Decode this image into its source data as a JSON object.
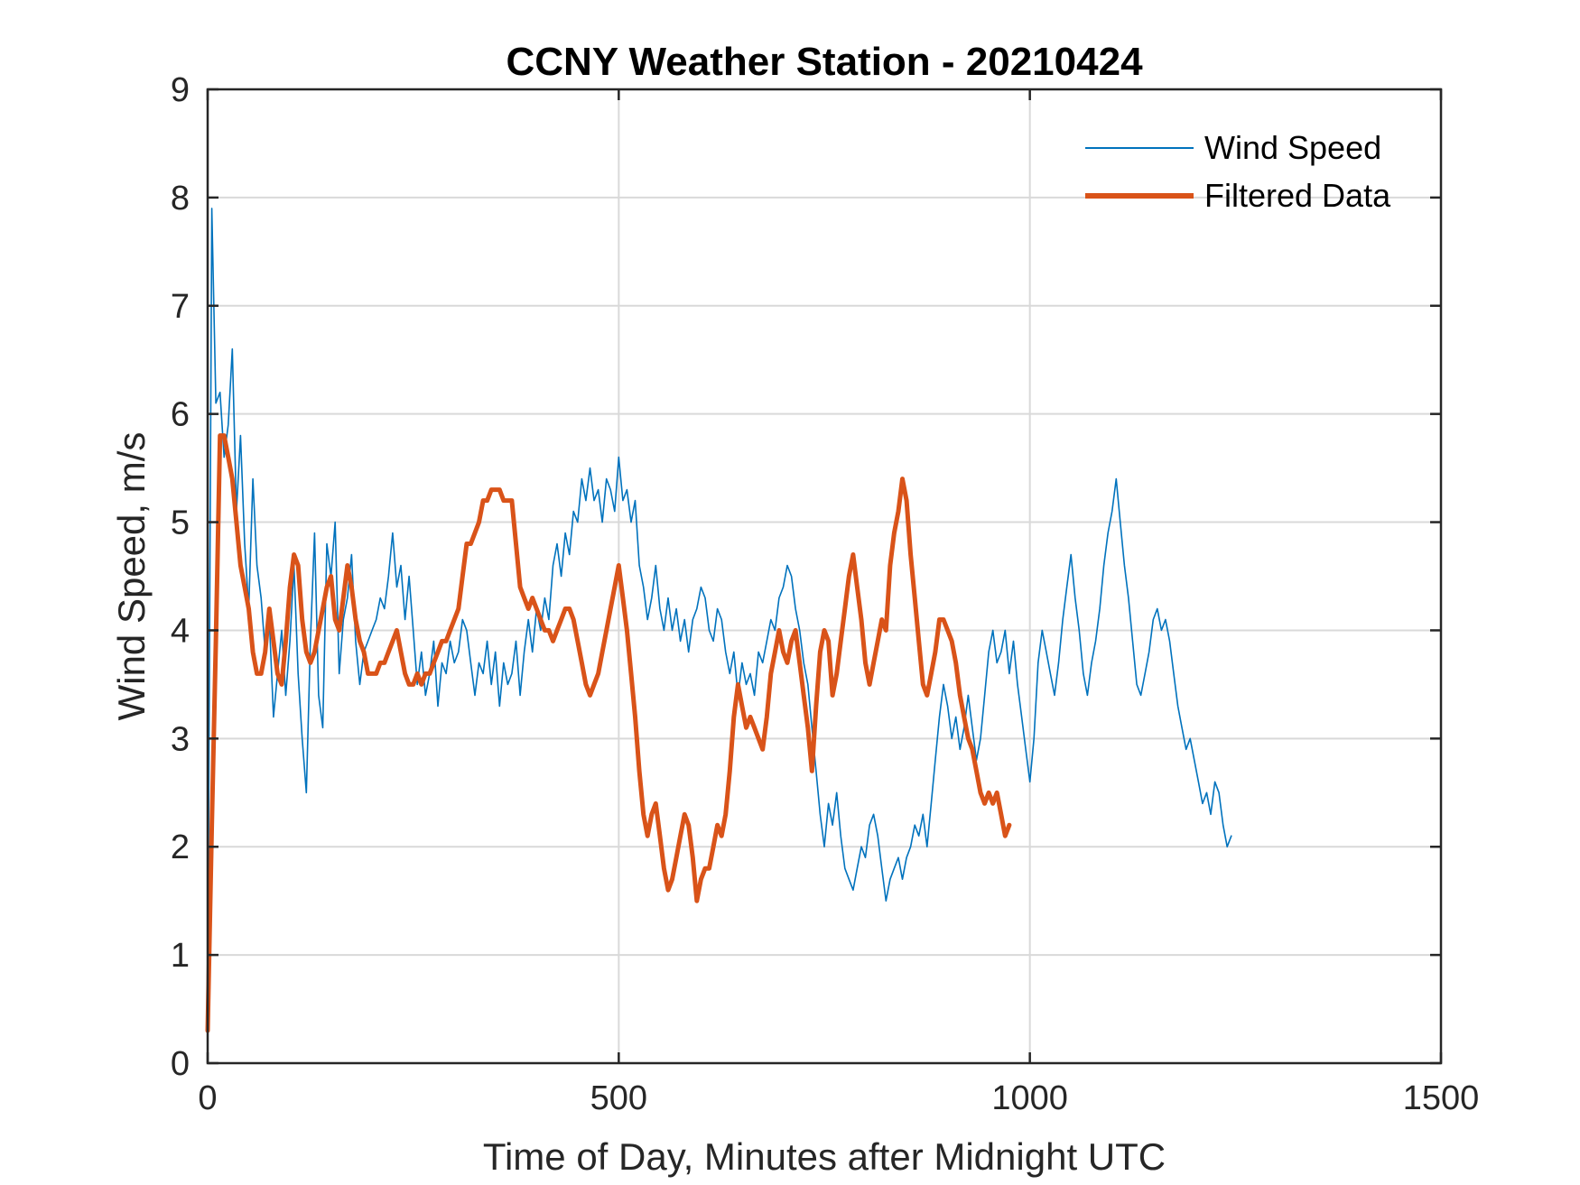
{
  "chart_data": {
    "type": "line",
    "title": "CCNY Weather Station - 20210424",
    "xlabel": "Time of Day, Minutes after Midnight UTC",
    "ylabel": "Wind Speed, m/s",
    "xlim": [
      0,
      1500
    ],
    "ylim": [
      0,
      9
    ],
    "x_ticks": [
      0,
      500,
      1000,
      1500
    ],
    "y_ticks": [
      0,
      1,
      2,
      3,
      4,
      5,
      6,
      7,
      8,
      9
    ],
    "x_tick_labels": [
      "0",
      "500",
      "1000",
      "1500"
    ],
    "y_tick_labels": [
      "0",
      "1",
      "2",
      "3",
      "4",
      "5",
      "6",
      "7",
      "8",
      "9"
    ],
    "grid": true,
    "legend_position": "top-right",
    "series": [
      {
        "name": "Wind Speed",
        "color": "#0072BD",
        "style": "thin",
        "x_start": 0,
        "x_step": 5,
        "values": [
          0.5,
          7.9,
          6.1,
          6.2,
          5.6,
          5.9,
          6.6,
          5.1,
          5.8,
          4.8,
          4.2,
          5.4,
          4.6,
          4.3,
          3.8,
          4.1,
          3.2,
          3.6,
          4.0,
          3.4,
          3.9,
          4.6,
          3.6,
          3.0,
          2.5,
          3.9,
          4.9,
          3.4,
          3.1,
          4.8,
          4.5,
          5.0,
          3.6,
          4.1,
          4.3,
          4.7,
          3.9,
          3.5,
          3.8,
          3.9,
          4.0,
          4.1,
          4.3,
          4.2,
          4.5,
          4.9,
          4.4,
          4.6,
          4.1,
          4.5,
          4.0,
          3.5,
          3.8,
          3.4,
          3.6,
          3.9,
          3.3,
          3.7,
          3.6,
          3.9,
          3.7,
          3.8,
          4.1,
          4.0,
          3.7,
          3.4,
          3.7,
          3.6,
          3.9,
          3.5,
          3.8,
          3.3,
          3.7,
          3.5,
          3.6,
          3.9,
          3.4,
          3.8,
          4.1,
          3.8,
          4.2,
          4.0,
          4.3,
          4.1,
          4.6,
          4.8,
          4.5,
          4.9,
          4.7,
          5.1,
          5.0,
          5.4,
          5.2,
          5.5,
          5.2,
          5.3,
          5.0,
          5.4,
          5.3,
          5.1,
          5.6,
          5.2,
          5.3,
          5.0,
          5.2,
          4.6,
          4.4,
          4.1,
          4.3,
          4.6,
          4.2,
          4.0,
          4.3,
          4.0,
          4.2,
          3.9,
          4.1,
          3.8,
          4.1,
          4.2,
          4.4,
          4.3,
          4.0,
          3.9,
          4.2,
          4.1,
          3.8,
          3.6,
          3.8,
          3.4,
          3.7,
          3.5,
          3.6,
          3.4,
          3.8,
          3.7,
          3.9,
          4.1,
          4.0,
          4.3,
          4.4,
          4.6,
          4.5,
          4.2,
          4.0,
          3.7,
          3.5,
          3.1,
          2.7,
          2.3,
          2.0,
          2.4,
          2.2,
          2.5,
          2.1,
          1.8,
          1.7,
          1.6,
          1.8,
          2.0,
          1.9,
          2.2,
          2.3,
          2.1,
          1.8,
          1.5,
          1.7,
          1.8,
          1.9,
          1.7,
          1.9,
          2.0,
          2.2,
          2.1,
          2.3,
          2.0,
          2.4,
          2.8,
          3.2,
          3.5,
          3.3,
          3.0,
          3.2,
          2.9,
          3.1,
          3.4,
          3.1,
          2.8,
          3.0,
          3.4,
          3.8,
          4.0,
          3.7,
          3.8,
          4.0,
          3.6,
          3.9,
          3.5,
          3.2,
          2.9,
          2.6,
          3.0,
          3.7,
          4.0,
          3.8,
          3.6,
          3.4,
          3.7,
          4.1,
          4.4,
          4.7,
          4.3,
          4.0,
          3.6,
          3.4,
          3.7,
          3.9,
          4.2,
          4.6,
          4.9,
          5.1,
          5.4,
          5.0,
          4.6,
          4.3,
          3.9,
          3.5,
          3.4,
          3.6,
          3.8,
          4.1,
          4.2,
          4.0,
          4.1,
          3.9,
          3.6,
          3.3,
          3.1,
          2.9,
          3.0,
          2.8,
          2.6,
          2.4,
          2.5,
          2.3,
          2.6,
          2.5,
          2.2,
          2.0,
          2.1
        ]
      },
      {
        "name": "Filtered Data",
        "color": "#D95319",
        "style": "thick",
        "x_start": 0,
        "x_step": 5,
        "values": [
          0.3,
          2.2,
          3.9,
          5.8,
          5.8,
          5.6,
          5.4,
          5.0,
          4.6,
          4.4,
          4.2,
          3.8,
          3.6,
          3.6,
          3.8,
          4.2,
          3.9,
          3.6,
          3.5,
          3.9,
          4.4,
          4.7,
          4.6,
          4.1,
          3.8,
          3.7,
          3.8,
          4.0,
          4.2,
          4.4,
          4.5,
          4.1,
          4.0,
          4.3,
          4.6,
          4.4,
          4.1,
          3.9,
          3.8,
          3.6,
          3.6,
          3.6,
          3.7,
          3.7,
          3.8,
          3.9,
          4.0,
          3.8,
          3.6,
          3.5,
          3.5,
          3.6,
          3.5,
          3.6,
          3.6,
          3.7,
          3.8,
          3.9,
          3.9,
          4.0,
          4.1,
          4.2,
          4.5,
          4.8,
          4.8,
          4.9,
          5.0,
          5.2,
          5.2,
          5.3,
          5.3,
          5.3,
          5.2,
          5.2,
          5.2,
          4.8,
          4.4,
          4.3,
          4.2,
          4.3,
          4.2,
          4.1,
          4.0,
          4.0,
          3.9,
          4.0,
          4.1,
          4.2,
          4.2,
          4.1,
          3.9,
          3.7,
          3.5,
          3.4,
          3.5,
          3.6,
          3.8,
          4.0,
          4.2,
          4.4,
          4.6,
          4.3,
          4.0,
          3.6,
          3.2,
          2.7,
          2.3,
          2.1,
          2.3,
          2.4,
          2.1,
          1.8,
          1.6,
          1.7,
          1.9,
          2.1,
          2.3,
          2.2,
          1.9,
          1.5,
          1.7,
          1.8,
          1.8,
          2.0,
          2.2,
          2.1,
          2.3,
          2.7,
          3.2,
          3.5,
          3.3,
          3.1,
          3.2,
          3.1,
          3.0,
          2.9,
          3.2,
          3.6,
          3.8,
          4.0,
          3.8,
          3.7,
          3.9,
          4.0,
          3.7,
          3.4,
          3.1,
          2.7,
          3.3,
          3.8,
          4.0,
          3.9,
          3.4,
          3.6,
          3.9,
          4.2,
          4.5,
          4.7,
          4.4,
          4.1,
          3.7,
          3.5,
          3.7,
          3.9,
          4.1,
          4.0,
          4.6,
          4.9,
          5.1,
          5.4,
          5.2,
          4.7,
          4.3,
          3.9,
          3.5,
          3.4,
          3.6,
          3.8,
          4.1,
          4.1,
          4.0,
          3.9,
          3.7,
          3.4,
          3.2,
          3.0,
          2.9,
          2.7,
          2.5,
          2.4,
          2.5,
          2.4,
          2.5,
          2.3,
          2.1,
          2.2
        ]
      }
    ]
  }
}
